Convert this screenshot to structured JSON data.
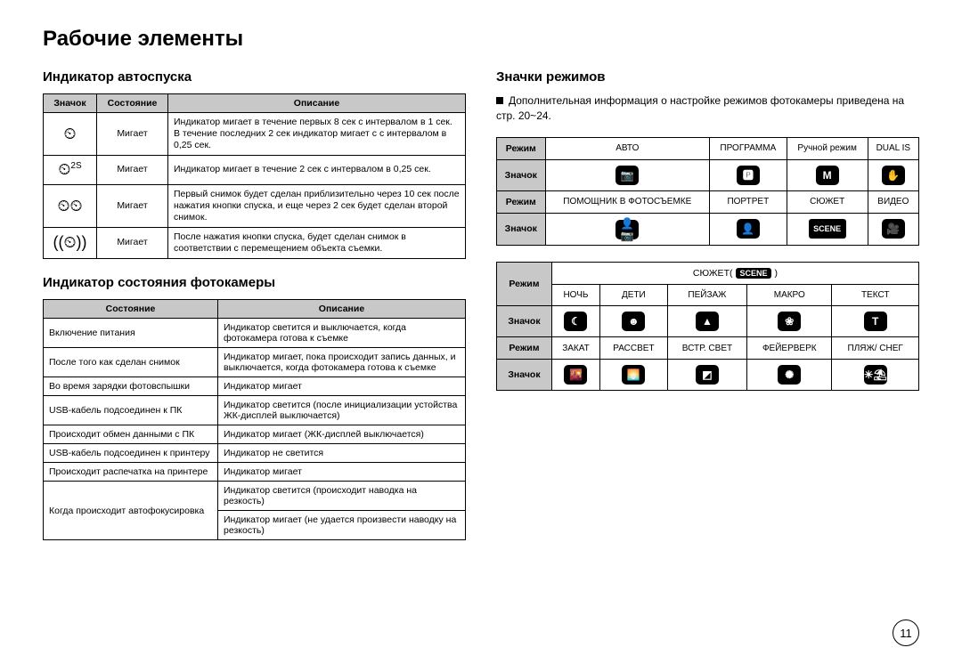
{
  "title": "Рабочие элементы",
  "page_number": "11",
  "left": {
    "section1_title": "Индикатор автоспуска",
    "t1_headers": [
      "Значок",
      "Состояние",
      "Описание"
    ],
    "t1_rows": [
      {
        "icon_glyph": "⏲",
        "icon_sup": "",
        "state": "Мигает",
        "desc": "Индикатор мигает в течение первых 8 сек с интервалом в 1 сек.\nВ течение последних 2 сек индикатор мигает с с интервалом в 0,25 сек."
      },
      {
        "icon_glyph": "⏲",
        "icon_sup": "2S",
        "state": "Мигает",
        "desc": "Индикатор мигает в течение 2 сек с интервалом в 0,25 сек."
      },
      {
        "icon_glyph": "⏲⏲",
        "icon_sup": "",
        "state": "Мигает",
        "desc": "Первый снимок будет сделан приблизительно через 10 сек после нажатия кнопки спуска, и еще через 2 сек будет сделан второй снимок."
      },
      {
        "icon_glyph": "((⏲))",
        "icon_sup": "",
        "state": "Мигает",
        "desc": "После нажатия кнопки спуска, будет сделан снимок в соответствии с перемещением объекта съемки."
      }
    ],
    "section2_title": "Индикатор состояния фотокамеры",
    "t2_headers": [
      "Состояние",
      "Описание"
    ],
    "t2_rows": [
      {
        "state": "Включение питания",
        "desc": "Индикатор светится и выключается, когда фотокамера готова к съемке"
      },
      {
        "state": "После того как сделан снимок",
        "desc": "Индикатор мигает, пока происходит запись данных, и выключается, когда фотокамера готова к съемке"
      },
      {
        "state": "Во время зарядки фотовспышки",
        "desc": "Индикатор мигает"
      },
      {
        "state": "USB-кабель подсоединен к ПК",
        "desc": "Индикатор светится (после инициализации устойства ЖК-дисплей выключается)"
      },
      {
        "state": "Происходит обмен данными с ПК",
        "desc": "Индикатор мигает (ЖК-дисплей выключается)"
      },
      {
        "state": "USB-кабель подсоединен к принтеру",
        "desc": "Индикатор не светится"
      },
      {
        "state": "Происходит распечатка на принтере",
        "desc": "Индикатор мигает"
      },
      {
        "state": "Когда происходит автофокусировка",
        "desc_a": "Индикатор светится (происходит наводка на резкость)",
        "desc_b": "Индикатор мигает (не удается произвести наводку на резкость)"
      }
    ]
  },
  "right": {
    "section_title": "Значки режимов",
    "intro": "Дополнительная информация о настройке режимов фотокамеры приведена на стр. 20~24.",
    "labels": {
      "mode": "Режим",
      "icon": "Значок"
    },
    "block1": {
      "row1_modes": [
        "АВТО",
        "ПРОГРАММА",
        "Ручной режим",
        "DUAL IS"
      ],
      "row1_icons": [
        "📷",
        "🅿",
        "M",
        "✋"
      ],
      "row2_modes": [
        "ПОМОЩНИК В ФОТОСЪЕМКЕ",
        "ПОРТРЕТ",
        "СЮЖЕТ",
        "ВИДЕО"
      ],
      "row2_icons": [
        "👤📷",
        "👤",
        "SCENE",
        "🎥"
      ]
    },
    "block2": {
      "scene_header_prefix": "СЮЖЕТ(",
      "scene_header_pill": "SCENE",
      "scene_header_suffix": ")",
      "row1_modes": [
        "НОЧЬ",
        "ДЕТИ",
        "ПЕЙЗАЖ",
        "МАКРО",
        "ТЕКСТ"
      ],
      "row1_icons": [
        "☾",
        "☻",
        "▲",
        "❀",
        "T"
      ],
      "row2_modes": [
        "ЗАКАТ",
        "РАССВЕТ",
        "ВСТР. СВЕТ",
        "ФЕЙЕРВЕРК",
        "ПЛЯЖ/\nСНЕГ"
      ],
      "row2_icons": [
        "🌇",
        "🌅",
        "◩",
        "✺",
        "☀⛱"
      ]
    }
  },
  "colors": {
    "header_bg": "#c8c8c8",
    "border": "#000000",
    "icon_bg": "#000000",
    "icon_fg": "#ffffff",
    "page_bg": "#ffffff",
    "text": "#000000"
  },
  "typography": {
    "title_pt": 24,
    "section_pt": 15,
    "body_pt": 10.5,
    "intro_pt": 12,
    "font_family": "Arial"
  }
}
